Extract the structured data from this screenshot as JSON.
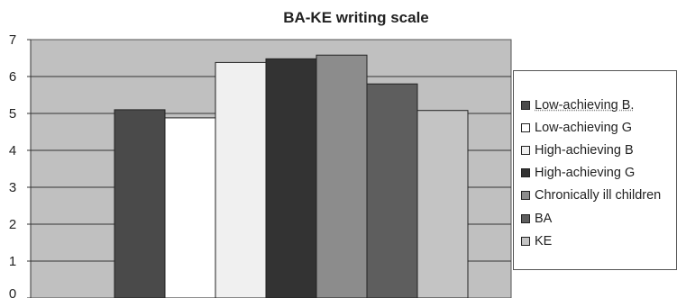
{
  "chart_data": {
    "type": "bar",
    "title": "BA-KE writing scale",
    "xlabel": "",
    "ylabel": "",
    "ylim": [
      0,
      7
    ],
    "yticks": [
      "0",
      "1",
      "2",
      "3",
      "4",
      "5",
      "6",
      "7"
    ],
    "grid": true,
    "legend_position": "right",
    "series": [
      {
        "name": "Low-achieving B.",
        "values": [
          5.1
        ],
        "color": "#4a4a4a"
      },
      {
        "name": "Low-achieving G",
        "values": [
          4.88
        ],
        "color": "#ffffff"
      },
      {
        "name": "High-achieving B",
        "values": [
          6.38
        ],
        "color": "#f0f0f0"
      },
      {
        "name": "High-achieving G",
        "values": [
          6.48
        ],
        "color": "#333333"
      },
      {
        "name": "Chronically ill children",
        "values": [
          6.58
        ],
        "color": "#8c8c8c"
      },
      {
        "name": "BA",
        "values": [
          5.8
        ],
        "color": "#5e5e5e"
      },
      {
        "name": "KE",
        "values": [
          5.08
        ],
        "color": "#c4c4c4"
      }
    ]
  },
  "colors": {
    "plot_background": "#c0c0c0",
    "gridline": "#333333"
  }
}
